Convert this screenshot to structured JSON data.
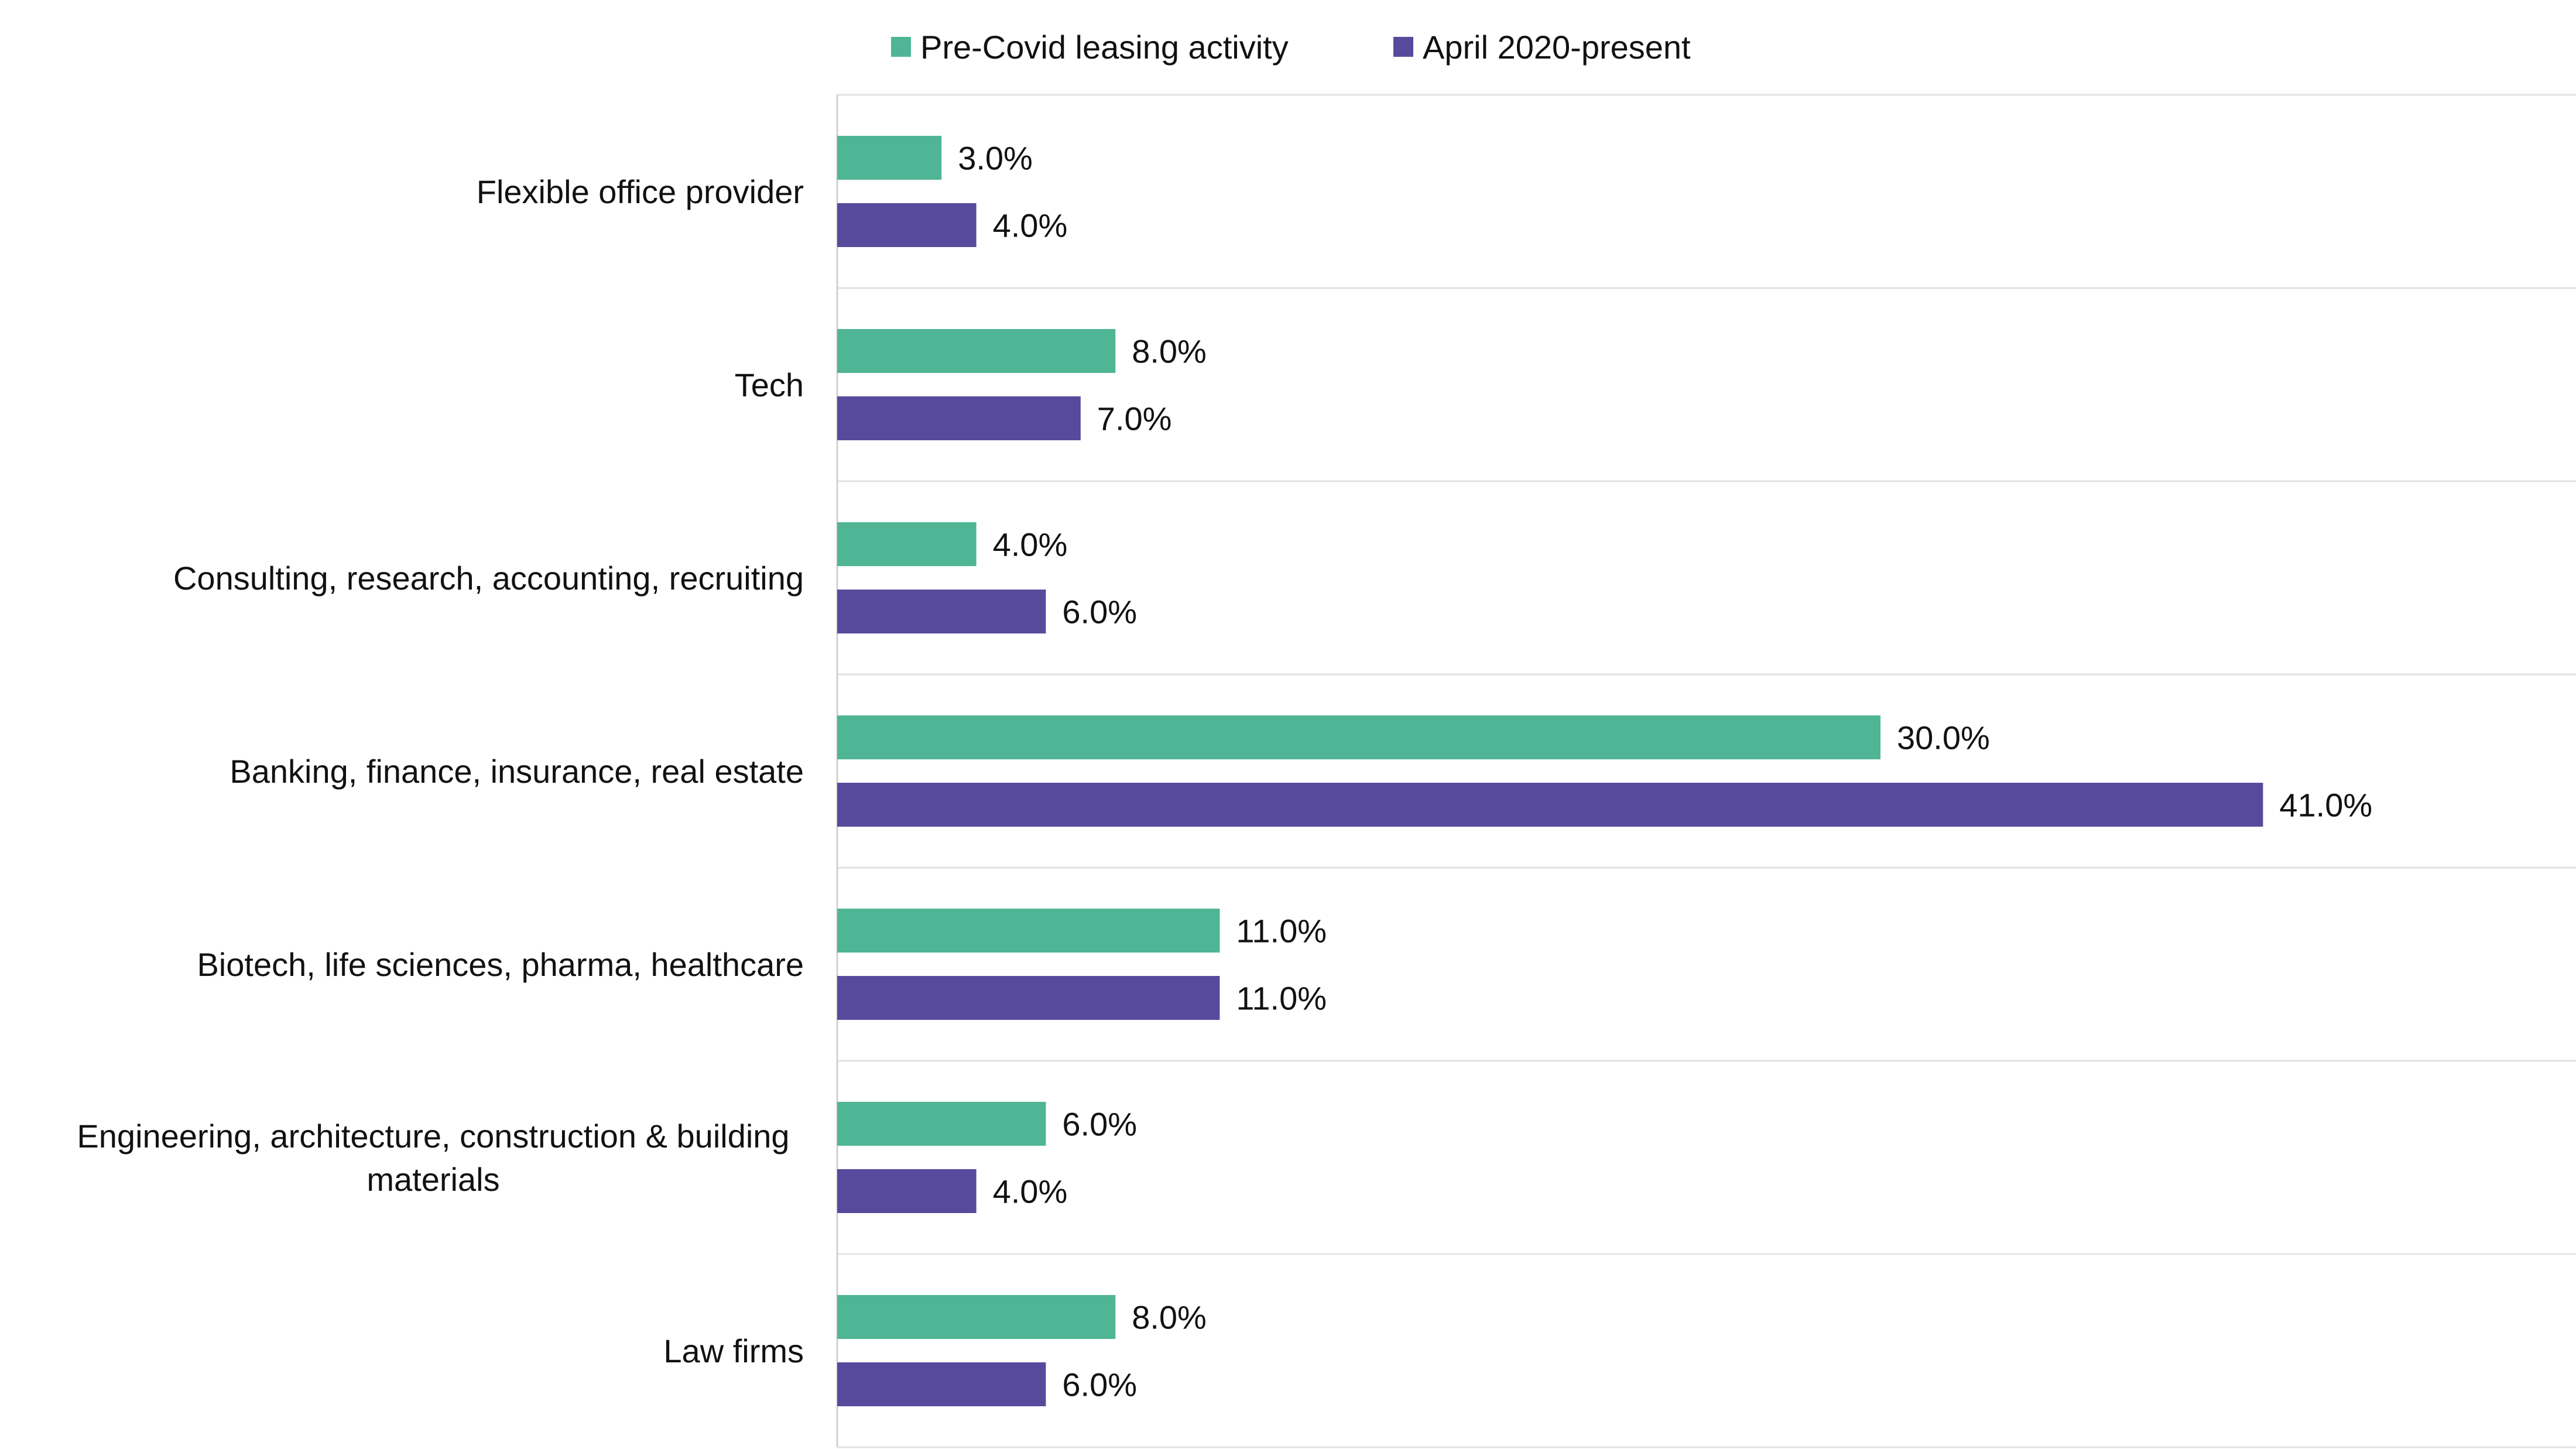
{
  "chart_data": {
    "type": "bar",
    "orientation": "horizontal",
    "categories": [
      "Flexible office provider",
      "Tech",
      "Consulting, research, accounting, recruiting",
      "Banking, finance, insurance, real estate",
      "Biotech, life sciences, pharma, healthcare",
      "Engineering, architecture, construction & building materials",
      "Law firms"
    ],
    "series": [
      {
        "name": "Pre-Covid leasing activity",
        "color": "#4fb594",
        "values": [
          3.0,
          8.0,
          4.0,
          30.0,
          11.0,
          6.0,
          8.0
        ],
        "labels": [
          "3.0%",
          "8.0%",
          "4.0%",
          "30.0%",
          "11.0%",
          "6.0%",
          "8.0%"
        ]
      },
      {
        "name": "April 2020-present",
        "color": "#574a9d",
        "values": [
          4.0,
          7.0,
          6.0,
          41.0,
          11.0,
          4.0,
          6.0
        ],
        "labels": [
          "4.0%",
          "7.0%",
          "6.0%",
          "41.0%",
          "11.0%",
          "4.0%",
          "6.0%"
        ]
      }
    ],
    "xlim": [
      0,
      50
    ],
    "grid": "horizontal separators",
    "legend": "top-center"
  }
}
